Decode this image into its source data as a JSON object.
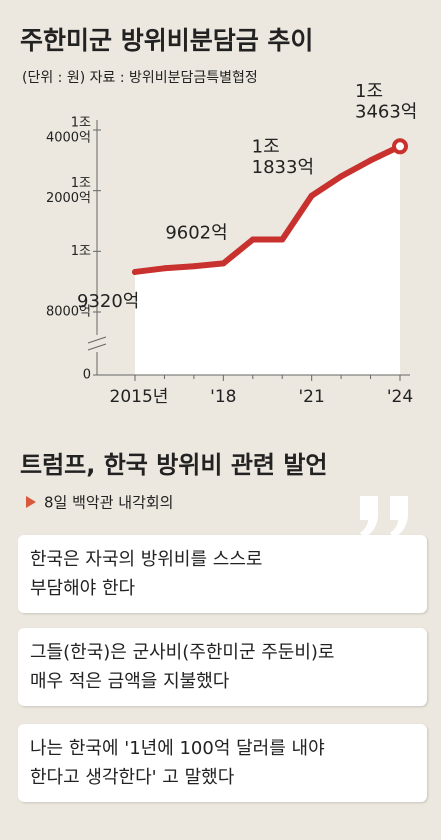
{
  "chart_data": {
    "type": "line",
    "title": "주한미군 방위비분담금 추이",
    "subtitle": "(단위 : 원)  자료 : 방위비분담금특별협정",
    "categories": [
      "2015년",
      null,
      null,
      "'18",
      null,
      null,
      "'21",
      null,
      null,
      "'24"
    ],
    "series": [
      {
        "name": "방위비분담금",
        "color": "#c8312e",
        "values": [
          9320,
          9441,
          9507,
          9602,
          10389,
          10389,
          11833,
          12472,
          13000,
          13463
        ],
        "value_labels": [
          "9320억",
          null,
          null,
          "9602억",
          null,
          null,
          "1조\n1833억",
          null,
          null,
          "1조\n3463억"
        ]
      }
    ],
    "ylim": [
      0,
      14000
    ],
    "yticks": [
      0,
      {
        "value": 8000,
        "label": "8000억"
      },
      {
        "value": 10000,
        "label": "1조"
      },
      {
        "value": 12000,
        "label": "1조\n2000억"
      },
      {
        "value": 14000,
        "label": "1조\n4000억"
      }
    ],
    "axis_break": true
  },
  "quotes": {
    "title": "트럼프, 한국 방위비 관련 발언",
    "subtitle": "8일 백악관 내각회의",
    "items": [
      "한국은 자국의 방위비를 스스로\n부담해야 한다",
      "그들(한국)은 군사비(주한미군 주둔비)로\n매우 적은 금액을 지불했다",
      "나는 한국에 '1년에 100억 달러를 내야\n한다고 생각한다' 고 말했다"
    ]
  }
}
